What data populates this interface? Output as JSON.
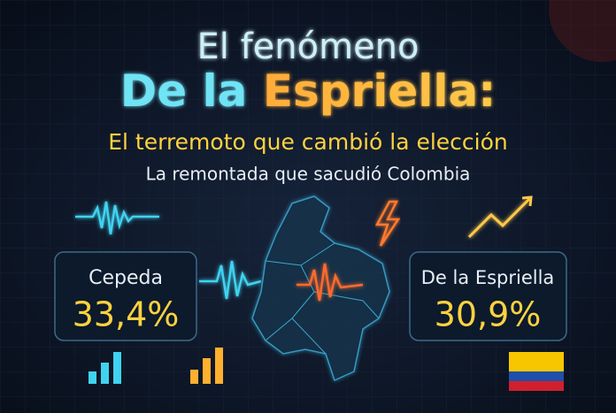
{
  "header": {
    "line1": "El fenómeno",
    "line2": {
      "part1": "De la",
      "part2": "Espriella:"
    },
    "subtitle": "El terremoto que cambió la elección",
    "tagline": "La remontada que sacudió Colombia"
  },
  "cards": [
    {
      "name": "Cepeda",
      "value": "33,4%"
    },
    {
      "name": "De la Espriella",
      "value": "30,9%"
    }
  ]
}
